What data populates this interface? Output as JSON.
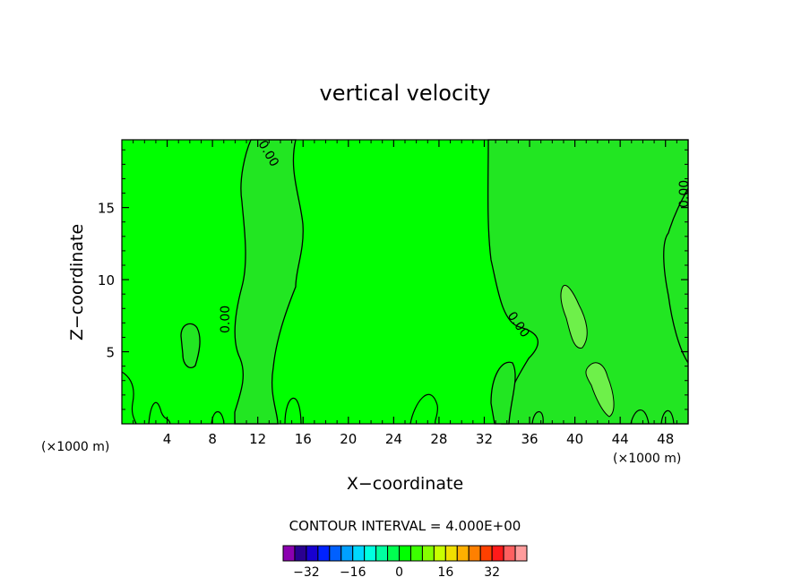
{
  "chart_data": {
    "type": "contour",
    "title": "vertical velocity",
    "xlabel": "X−coordinate",
    "ylabel": "Z−coordinate",
    "x_unit": "(×1000 m)",
    "y_unit": "(×1000 m)",
    "xlim": [
      0,
      50
    ],
    "ylim": [
      0,
      19.7
    ],
    "x_ticks": [
      4,
      8,
      12,
      16,
      20,
      24,
      28,
      32,
      36,
      40,
      44,
      48
    ],
    "x_tick_labels": [
      "4",
      "8",
      "12",
      "16",
      "20",
      "24",
      "28",
      "32",
      "36",
      "40",
      "44",
      "48"
    ],
    "y_ticks": [
      5,
      10,
      15
    ],
    "y_tick_labels": [
      "5",
      "10",
      "15"
    ],
    "contour_labels": [
      "0.00",
      "0.00",
      "0.00",
      "0.00"
    ],
    "contour_interval_text": "CONTOUR INTERVAL = 4.000E+00",
    "colorbar": {
      "levels": [
        -36,
        -32,
        -28,
        -24,
        -20,
        -16,
        -12,
        -8,
        -4,
        0,
        4,
        8,
        12,
        16,
        20,
        24,
        28,
        32,
        36
      ],
      "colors": [
        "#8b00b0",
        "#2a0090",
        "#1800d0",
        "#0022ff",
        "#0060ff",
        "#00a0ff",
        "#00d8ff",
        "#00ffe0",
        "#00ffa0",
        "#00ff50",
        "#00ff00",
        "#3cff00",
        "#86ff00",
        "#c8ff00",
        "#f0e000",
        "#ffb000",
        "#ff8000",
        "#ff4000",
        "#ff1a1a",
        "#ff6060",
        "#ff9c9c"
      ],
      "tick_values": [
        -32,
        -16,
        0,
        16,
        32
      ],
      "tick_labels": [
        "−32",
        "−16",
        "0",
        "16",
        "32"
      ]
    },
    "background_fill": "#00ff00",
    "positive_region_fill": "#1ee81e",
    "strong_positive_fill": "#6ef04a",
    "grid": false
  }
}
